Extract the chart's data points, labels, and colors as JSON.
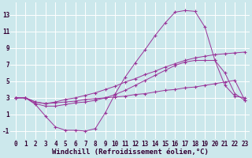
{
  "background_color": "#cce8ec",
  "grid_color": "#ffffff",
  "line_color": "#993399",
  "marker": "+",
  "marker_size": 3,
  "xlabel": "Windchill (Refroidissement éolien,°C)",
  "xlabel_fontsize": 6.5,
  "tick_fontsize": 5.5,
  "xlim": [
    -0.5,
    23.5
  ],
  "ylim": [
    -2.0,
    14.5
  ],
  "xticks": [
    0,
    1,
    2,
    3,
    4,
    5,
    6,
    7,
    8,
    9,
    10,
    11,
    12,
    13,
    14,
    15,
    16,
    17,
    18,
    19,
    20,
    21,
    22,
    23
  ],
  "yticks": [
    -1,
    1,
    3,
    5,
    7,
    9,
    11,
    13
  ],
  "line1_x": [
    0,
    1,
    2,
    3,
    4,
    5,
    6,
    7,
    8,
    9,
    10,
    11,
    12,
    13,
    14,
    15,
    16,
    17,
    18,
    19,
    20,
    21,
    22,
    23
  ],
  "line1_y": [
    3.0,
    3.0,
    2.2,
    0.8,
    -0.5,
    -0.9,
    -0.9,
    -1.0,
    -0.7,
    1.2,
    3.5,
    5.5,
    7.2,
    8.8,
    10.5,
    12.0,
    13.3,
    13.5,
    13.4,
    11.5,
    7.5,
    4.5,
    3.2,
    3.0
  ],
  "line2_x": [
    0,
    1,
    2,
    3,
    4,
    5,
    6,
    7,
    8,
    9,
    10,
    11,
    12,
    13,
    14,
    15,
    16,
    17,
    18,
    19,
    20,
    21,
    22,
    23
  ],
  "line2_y": [
    3.0,
    3.0,
    2.3,
    2.0,
    2.0,
    2.2,
    2.4,
    2.5,
    2.7,
    3.0,
    3.4,
    3.9,
    4.5,
    5.1,
    5.7,
    6.3,
    6.9,
    7.3,
    7.5,
    7.5,
    7.5,
    6.0,
    3.5,
    2.7
  ],
  "line3_x": [
    0,
    1,
    2,
    3,
    4,
    5,
    6,
    7,
    8,
    9,
    10,
    11,
    12,
    13,
    14,
    15,
    16,
    17,
    18,
    19,
    20,
    21,
    22,
    23
  ],
  "line3_y": [
    3.0,
    3.0,
    2.5,
    2.3,
    2.5,
    2.8,
    3.0,
    3.3,
    3.6,
    4.0,
    4.4,
    4.9,
    5.3,
    5.8,
    6.2,
    6.7,
    7.1,
    7.5,
    7.8,
    8.0,
    8.2,
    8.3,
    8.4,
    8.5
  ],
  "line4_x": [
    0,
    1,
    2,
    3,
    4,
    5,
    6,
    7,
    8,
    9,
    10,
    11,
    12,
    13,
    14,
    15,
    16,
    17,
    18,
    19,
    20,
    21,
    22,
    23
  ],
  "line4_y": [
    3.0,
    3.0,
    2.5,
    2.3,
    2.4,
    2.5,
    2.6,
    2.8,
    2.9,
    3.0,
    3.1,
    3.2,
    3.4,
    3.5,
    3.7,
    3.9,
    4.0,
    4.2,
    4.3,
    4.5,
    4.7,
    4.9,
    5.1,
    2.7
  ]
}
